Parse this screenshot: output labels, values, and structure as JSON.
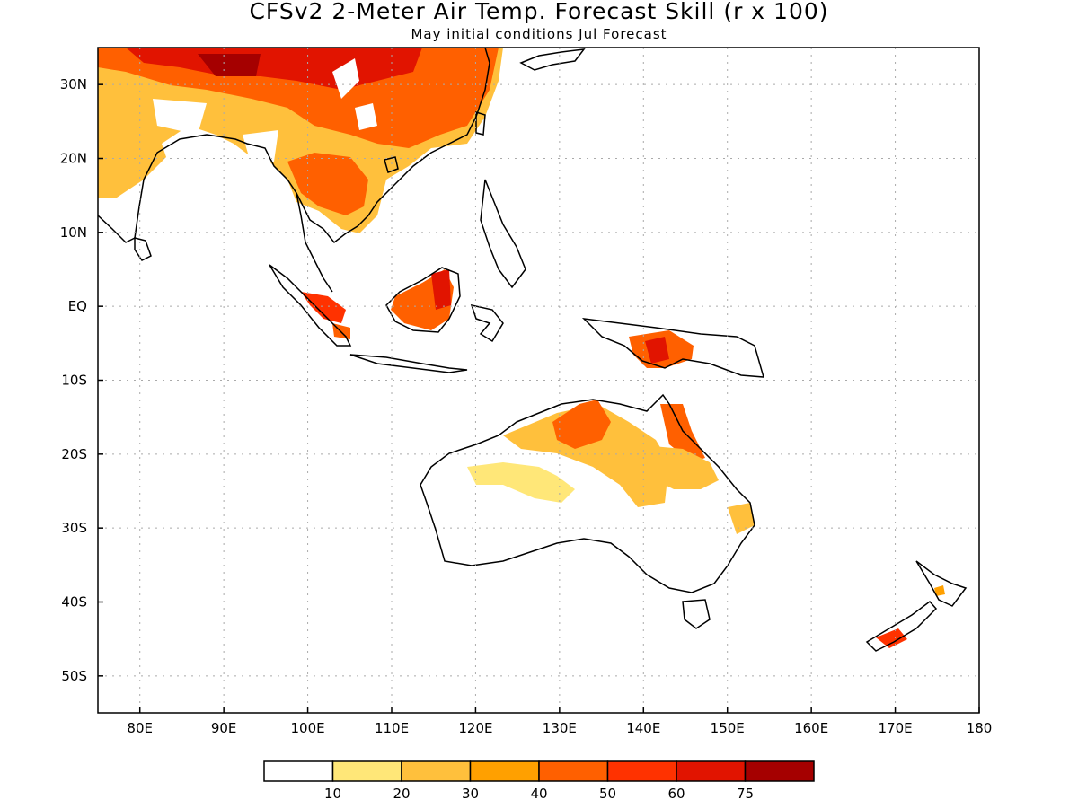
{
  "title": "CFSv2 2-Meter Air Temp. Forecast Skill (r x 100)",
  "subtitle": "May initial conditions  Jul Forecast",
  "map": {
    "lon_range": [
      75,
      180
    ],
    "lat_range": [
      -55,
      35
    ],
    "x_ticks": [
      {
        "value": 80,
        "label": "80E"
      },
      {
        "value": 90,
        "label": "90E"
      },
      {
        "value": 100,
        "label": "100E"
      },
      {
        "value": 110,
        "label": "110E"
      },
      {
        "value": 120,
        "label": "120E"
      },
      {
        "value": 130,
        "label": "130E"
      },
      {
        "value": 140,
        "label": "140E"
      },
      {
        "value": 150,
        "label": "150E"
      },
      {
        "value": 160,
        "label": "160E"
      },
      {
        "value": 170,
        "label": "170E"
      },
      {
        "value": 180,
        "label": "180"
      }
    ],
    "y_ticks": [
      {
        "value": 30,
        "label": "30N"
      },
      {
        "value": 20,
        "label": "20N"
      },
      {
        "value": 10,
        "label": "10N"
      },
      {
        "value": 0,
        "label": "EQ"
      },
      {
        "value": -10,
        "label": "10S"
      },
      {
        "value": -20,
        "label": "20S"
      },
      {
        "value": -30,
        "label": "30S"
      },
      {
        "value": -40,
        "label": "40S"
      },
      {
        "value": -50,
        "label": "50S"
      }
    ],
    "grid": "dotted"
  },
  "colorbar": {
    "colors": [
      "#ffffff",
      "#ffe778",
      "#ffc03c",
      "#ffa000",
      "#ff6000",
      "#ff3200",
      "#e11400",
      "#a50000"
    ],
    "labels": [
      "10",
      "20",
      "30",
      "40",
      "50",
      "60",
      "75"
    ]
  }
}
